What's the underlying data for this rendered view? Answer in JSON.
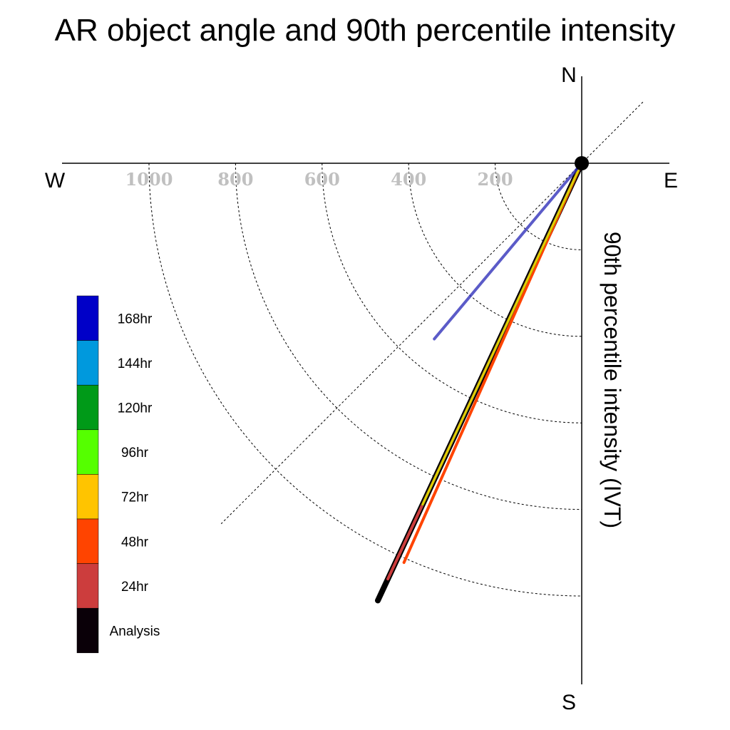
{
  "chart_data": {
    "type": "polar-vector",
    "title": "AR object angle and 90th percentile intensity",
    "ylabel": "90th percentile intensity (IVT)",
    "compass": {
      "n": "N",
      "s": "S",
      "e": "E",
      "w": "W"
    },
    "radial_ticks": [
      "200",
      "400",
      "600",
      "800",
      "1000"
    ],
    "rmax": 1200,
    "grid": true,
    "legend": {
      "position": "left",
      "entries": [
        {
          "label": "168hr",
          "color": "#0000c8"
        },
        {
          "label": "144hr",
          "color": "#0099dd"
        },
        {
          "label": "120hr",
          "color": "#009a18"
        },
        {
          "label": "96hr",
          "color": "#55ff00"
        },
        {
          "label": "72hr",
          "color": "#ffc400"
        },
        {
          "label": "48hr",
          "color": "#ff4400"
        },
        {
          "label": "24hr",
          "color": "#cc3d3d"
        },
        {
          "label": "Analysis",
          "color": "#0a0008"
        }
      ]
    },
    "series": [
      {
        "name": "Analysis",
        "angle_deg": 205,
        "intensity": 1115,
        "color": "#000000"
      },
      {
        "name": "24hr",
        "angle_deg": 205,
        "intensity": 1060,
        "color": "#cc3d3d"
      },
      {
        "name": "48hr",
        "angle_deg": 204,
        "intensity": 1010,
        "color": "#ff4400"
      },
      {
        "name": "72hr",
        "angle_deg": 205,
        "intensity": 870,
        "color": "#ffc400"
      },
      {
        "name": "96hr",
        "angle_deg": 205,
        "intensity": 870,
        "color": "#55ff00"
      },
      {
        "name": "168hr",
        "angle_deg": 220,
        "intensity": 530,
        "color": "#3333bb"
      }
    ]
  }
}
